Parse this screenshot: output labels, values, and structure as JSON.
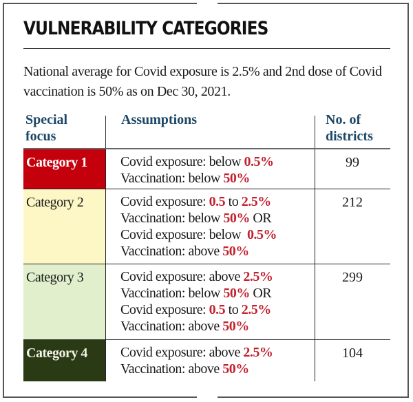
{
  "title": "VULNERABILITY CATEGORIES",
  "intro": "National average for Covid exposure is 2.5% and 2nd dose of Covid vaccination is 50% as on Dec 30, 2021.",
  "headers": {
    "special_focus": "Special focus",
    "assumptions": "Assumptions",
    "num_districts": "No. of districts"
  },
  "colors": {
    "header_text": "#1c4766",
    "highlight": "#c2232f",
    "category_1_bg": "#c4000c",
    "category_2_bg": "#fdf7c6",
    "category_3_bg": "#e1efcd",
    "category_4_bg": "#2a3a14"
  },
  "rows": [
    {
      "category": "Category 1",
      "lines": [
        [
          {
            "t": "Covid exposure: below "
          },
          {
            "t": "0.5%",
            "hl": true
          }
        ],
        [
          {
            "t": "Vaccination: below "
          },
          {
            "t": "50%",
            "hl": true
          }
        ]
      ],
      "districts": "99"
    },
    {
      "category": "Category 2",
      "lines": [
        [
          {
            "t": "Covid exposure: "
          },
          {
            "t": "0.5",
            "hl": true
          },
          {
            "t": " to "
          },
          {
            "t": "2.5%",
            "hl": true
          }
        ],
        [
          {
            "t": "Vaccination: below "
          },
          {
            "t": "50%",
            "hl": true
          },
          {
            "t": " OR"
          }
        ],
        [
          {
            "t": "Covid exposure: below  "
          },
          {
            "t": "0.5%",
            "hl": true
          }
        ],
        [
          {
            "t": "Vaccination: above "
          },
          {
            "t": "50%",
            "hl": true
          }
        ]
      ],
      "districts": "212"
    },
    {
      "category": "Category 3",
      "lines": [
        [
          {
            "t": "Covid exposure: above "
          },
          {
            "t": "2.5%",
            "hl": true
          }
        ],
        [
          {
            "t": "Vaccination: below "
          },
          {
            "t": "50%",
            "hl": true
          },
          {
            "t": " OR"
          }
        ],
        [
          {
            "t": "Covid exposure: "
          },
          {
            "t": "0.5",
            "hl": true
          },
          {
            "t": " to "
          },
          {
            "t": "2.5%",
            "hl": true
          }
        ],
        [
          {
            "t": "Vaccination: above "
          },
          {
            "t": "50%",
            "hl": true
          }
        ]
      ],
      "districts": "299"
    },
    {
      "category": "Category 4",
      "lines": [
        [
          {
            "t": "Covid exposure: above "
          },
          {
            "t": "2.5%",
            "hl": true
          }
        ],
        [
          {
            "t": "Vaccination: above "
          },
          {
            "t": "50%",
            "hl": true
          }
        ]
      ],
      "districts": "104"
    }
  ]
}
